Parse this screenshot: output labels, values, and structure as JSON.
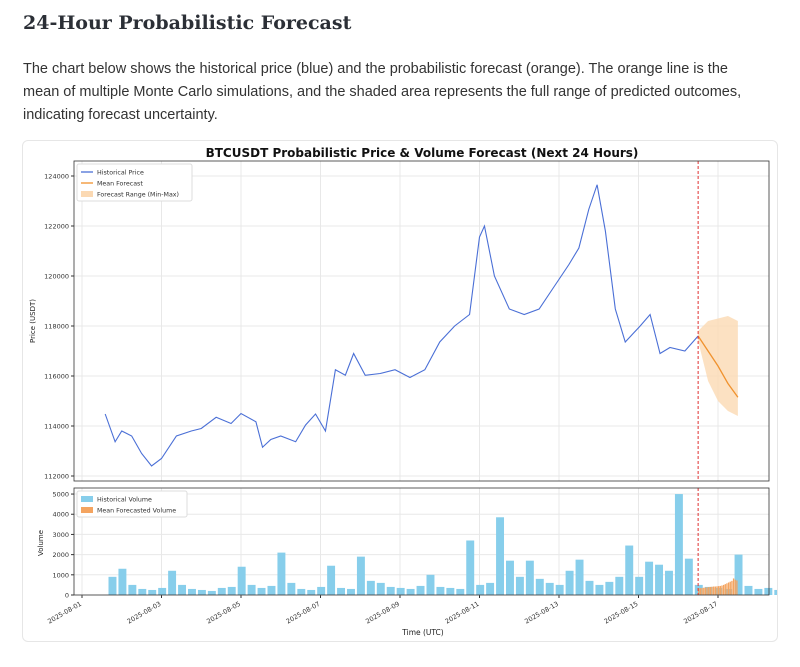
{
  "heading": "24-Hour Probabilistic Forecast",
  "description": "The chart below shows the historical price (blue) and the probabilistic forecast (orange). The orange line is the mean of multiple Monte Carlo simulations, and the shaded area represents the full range of predicted outcomes, indicating forecast uncertainty.",
  "chart_data": [
    {
      "type": "line",
      "title": "BTCUSDT Probabilistic Price & Volume Forecast (Next 24 Hours)",
      "ylabel": "Price (USDT)",
      "ylim": [
        111800,
        124600
      ],
      "yticks": [
        112000,
        114000,
        116000,
        118000,
        120000,
        122000,
        124000
      ],
      "grid": true,
      "legend_position": "top-left",
      "forecast_start": "2025-08-16T12:00",
      "colors": {
        "historical": "#4a6fd6",
        "forecast": "#f0922e",
        "range": "#fbd9b3",
        "divider": "#e03030"
      },
      "series": [
        {
          "name": "Historical Price",
          "points": [
            [
              "2025-08-01T14:00",
              114480
            ],
            [
              "2025-08-01T20:00",
              113370
            ],
            [
              "2025-08-02T00:00",
              113800
            ],
            [
              "2025-08-02T06:00",
              113600
            ],
            [
              "2025-08-02T12:00",
              112900
            ],
            [
              "2025-08-02T18:00",
              112400
            ],
            [
              "2025-08-03T00:00",
              112700
            ],
            [
              "2025-08-03T09:00",
              113600
            ],
            [
              "2025-08-03T18:00",
              113800
            ],
            [
              "2025-08-04T00:00",
              113900
            ],
            [
              "2025-08-04T09:00",
              114350
            ],
            [
              "2025-08-04T18:00",
              114100
            ],
            [
              "2025-08-05T00:00",
              114500
            ],
            [
              "2025-08-05T09:00",
              114170
            ],
            [
              "2025-08-05T13:00",
              113150
            ],
            [
              "2025-08-05T18:00",
              113460
            ],
            [
              "2025-08-06T00:00",
              113600
            ],
            [
              "2025-08-06T09:00",
              113370
            ],
            [
              "2025-08-06T15:00",
              114040
            ],
            [
              "2025-08-06T21:00",
              114480
            ],
            [
              "2025-08-07T03:00",
              113800
            ],
            [
              "2025-08-07T09:00",
              116250
            ],
            [
              "2025-08-07T15:00",
              116030
            ],
            [
              "2025-08-07T20:00",
              116900
            ],
            [
              "2025-08-08T03:00",
              116030
            ],
            [
              "2025-08-08T12:00",
              116100
            ],
            [
              "2025-08-08T21:00",
              116250
            ],
            [
              "2025-08-09T06:00",
              115940
            ],
            [
              "2025-08-09T15:00",
              116250
            ],
            [
              "2025-08-10T00:00",
              117360
            ],
            [
              "2025-08-10T09:00",
              118000
            ],
            [
              "2025-08-10T18:00",
              118460
            ],
            [
              "2025-08-11T00:00",
              121560
            ],
            [
              "2025-08-11T03:00",
              122000
            ],
            [
              "2025-08-11T09:00",
              120000
            ],
            [
              "2025-08-11T18:00",
              118680
            ],
            [
              "2025-08-12T03:00",
              118460
            ],
            [
              "2025-08-12T12:00",
              118680
            ],
            [
              "2025-08-12T21:00",
              119570
            ],
            [
              "2025-08-13T06:00",
              120460
            ],
            [
              "2025-08-13T12:00",
              121120
            ],
            [
              "2025-08-13T18:00",
              122670
            ],
            [
              "2025-08-13T23:00",
              123650
            ],
            [
              "2025-08-14T04:00",
              121800
            ],
            [
              "2025-08-14T10:00",
              118680
            ],
            [
              "2025-08-14T16:00",
              117360
            ],
            [
              "2025-08-15T01:00",
              118000
            ],
            [
              "2025-08-15T07:00",
              118460
            ],
            [
              "2025-08-15T13:00",
              116900
            ],
            [
              "2025-08-15T19:00",
              117140
            ],
            [
              "2025-08-16T04:00",
              117000
            ],
            [
              "2025-08-16T12:00",
              117600
            ]
          ]
        },
        {
          "name": "Mean Forecast",
          "points": [
            [
              "2025-08-16T12:00",
              117600
            ],
            [
              "2025-08-16T18:00",
              117000
            ],
            [
              "2025-08-17T00:00",
              116400
            ],
            [
              "2025-08-17T06:00",
              115700
            ],
            [
              "2025-08-17T12:00",
              115150
            ]
          ]
        },
        {
          "name": "Forecast Range (Min-Max)",
          "bands": [
            [
              "2025-08-16T12:00",
              117400,
              117800
            ],
            [
              "2025-08-16T18:00",
              115800,
              118200
            ],
            [
              "2025-08-17T00:00",
              115000,
              118300
            ],
            [
              "2025-08-17T06:00",
              114600,
              118400
            ],
            [
              "2025-08-17T12:00",
              114400,
              118200
            ]
          ]
        }
      ]
    },
    {
      "type": "bar",
      "xlabel": "Time (UTC)",
      "ylabel": "Volume",
      "ylim": [
        0,
        5300
      ],
      "yticks": [
        0,
        1000,
        2000,
        3000,
        4000,
        5000
      ],
      "xticks": [
        "2025-08-01",
        "2025-08-03",
        "2025-08-05",
        "2025-08-07",
        "2025-08-09",
        "2025-08-11",
        "2025-08-13",
        "2025-08-15",
        "2025-08-17"
      ],
      "grid": true,
      "legend_position": "top-left",
      "colors": {
        "historical": "#87ceeb",
        "forecast": "#f4a460"
      },
      "series": [
        {
          "name": "Historical Volume",
          "start": "2025-08-01T16:00",
          "step_hours": 6,
          "values": [
            900,
            1300,
            500,
            300,
            250,
            350,
            1200,
            500,
            300,
            250,
            200,
            350,
            400,
            1400,
            500,
            350,
            450,
            2100,
            600,
            300,
            250,
            400,
            1450,
            350,
            300,
            1900,
            700,
            600,
            400,
            350,
            300,
            450,
            1000,
            400,
            350,
            300,
            2700,
            500,
            600,
            3850,
            1700,
            900,
            1700,
            800,
            600,
            500,
            1200,
            1750,
            700,
            500,
            650,
            900,
            2450,
            900,
            1650,
            1500,
            1200,
            5000,
            1800,
            500,
            400,
            350,
            300,
            2000,
            450,
            300,
            350,
            250,
            350
          ]
        },
        {
          "name": "Mean Forecasted Volume",
          "start": "2025-08-16T12:00",
          "step_hours": 1,
          "values": [
            330,
            340,
            350,
            360,
            370,
            380,
            390,
            400,
            410,
            420,
            420,
            430,
            440,
            450,
            470,
            500,
            540,
            580,
            620,
            660,
            700,
            820,
            760,
            720
          ]
        }
      ]
    }
  ]
}
